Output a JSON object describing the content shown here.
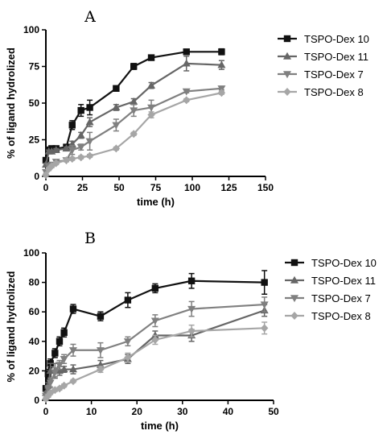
{
  "chart_data": [
    {
      "type": "line",
      "panel": "A",
      "xlabel": "time (h)",
      "ylabel": "% of ligand hydrolized",
      "xlim": [
        0,
        150
      ],
      "ylim": [
        0,
        100
      ],
      "xticks": [
        0,
        25,
        50,
        75,
        100,
        125,
        150
      ],
      "yticks": [
        0,
        25,
        50,
        75,
        100
      ],
      "grid": false,
      "legend": "right",
      "series": [
        {
          "name": "TSPO-Dex 10",
          "color": "#111111",
          "marker": "square",
          "x": [
            0,
            2,
            4,
            7,
            14,
            18,
            24,
            30,
            48,
            60,
            72,
            96,
            120
          ],
          "y": [
            11,
            18,
            19,
            19,
            20,
            35,
            45,
            47,
            60,
            75,
            81,
            85,
            85
          ],
          "err": [
            1,
            2,
            1,
            1,
            1,
            3,
            4,
            5,
            1,
            2,
            1,
            1,
            2
          ]
        },
        {
          "name": "TSPO-Dex 11",
          "color": "#666666",
          "marker": "triangle-up",
          "x": [
            0,
            2,
            4,
            7,
            14,
            18,
            24,
            30,
            48,
            60,
            72,
            96,
            120
          ],
          "y": [
            8,
            17,
            17,
            18,
            19,
            22,
            28,
            37,
            47,
            51,
            62,
            77,
            76
          ],
          "err": [
            1,
            1,
            1,
            1,
            1,
            2,
            2,
            3,
            2,
            2,
            2,
            5,
            3
          ]
        },
        {
          "name": "TSPO-Dex 7",
          "color": "#808080",
          "marker": "triangle-down",
          "x": [
            0,
            2,
            4,
            7,
            14,
            18,
            24,
            30,
            48,
            60,
            72,
            96,
            120
          ],
          "y": [
            3,
            7,
            8,
            10,
            11,
            18,
            20,
            24,
            35,
            45,
            47,
            58,
            60
          ],
          "err": [
            1,
            1,
            1,
            1,
            1,
            3,
            2,
            6,
            4,
            4,
            5,
            1,
            1
          ]
        },
        {
          "name": "TSPO-Dex 8",
          "color": "#a6a6a6",
          "marker": "diamond",
          "x": [
            0,
            2,
            4,
            7,
            14,
            18,
            24,
            30,
            48,
            60,
            72,
            96,
            120
          ],
          "y": [
            1,
            5,
            7,
            9,
            11,
            12,
            13,
            14,
            19,
            29,
            42,
            52,
            57
          ],
          "err": [
            1,
            1,
            1,
            1,
            1,
            1,
            1,
            1,
            1,
            1,
            2,
            1,
            1
          ]
        }
      ]
    },
    {
      "type": "line",
      "panel": "B",
      "xlabel": "time (h)",
      "ylabel": "% of ligand hydrolized",
      "xlim": [
        0,
        50
      ],
      "ylim": [
        0,
        100
      ],
      "xticks": [
        0,
        10,
        20,
        30,
        40,
        50
      ],
      "yticks": [
        0,
        20,
        40,
        60,
        80,
        100
      ],
      "grid": false,
      "legend": "right",
      "series": [
        {
          "name": "TSPO-Dex 10",
          "color": "#111111",
          "marker": "square",
          "x": [
            0,
            0.5,
            1,
            2,
            3,
            4,
            6,
            12,
            18,
            24,
            32,
            48
          ],
          "y": [
            8,
            18,
            25,
            32,
            40,
            46,
            62,
            57,
            68,
            76,
            81,
            80
          ],
          "err": [
            2,
            3,
            3,
            3,
            3,
            3,
            3,
            3,
            5,
            3,
            5,
            8
          ]
        },
        {
          "name": "TSPO-Dex 11",
          "color": "#666666",
          "marker": "triangle-up",
          "x": [
            0,
            0.5,
            1,
            2,
            3,
            4,
            6,
            12,
            18,
            24,
            32,
            48
          ],
          "y": [
            5,
            10,
            20,
            20,
            20,
            21,
            21,
            24,
            28,
            44,
            44,
            61
          ],
          "err": [
            1,
            2,
            5,
            5,
            3,
            2,
            3,
            3,
            3,
            3,
            4,
            4
          ]
        },
        {
          "name": "TSPO-Dex 7",
          "color": "#808080",
          "marker": "triangle-down",
          "x": [
            0,
            0.5,
            1,
            2,
            3,
            4,
            6,
            12,
            18,
            24,
            32,
            48
          ],
          "y": [
            3,
            8,
            12,
            19,
            24,
            28,
            34,
            34,
            40,
            54,
            62,
            65
          ],
          "err": [
            1,
            2,
            3,
            3,
            3,
            3,
            4,
            5,
            3,
            4,
            5,
            5
          ]
        },
        {
          "name": "TSPO-Dex 8",
          "color": "#a6a6a6",
          "marker": "diamond",
          "x": [
            0,
            0.5,
            1,
            2,
            3,
            4,
            6,
            12,
            18,
            24,
            32,
            48
          ],
          "y": [
            1,
            3,
            5,
            7,
            8,
            10,
            13,
            21,
            29,
            41,
            47,
            49
          ],
          "err": [
            1,
            1,
            1,
            1,
            1,
            1,
            1,
            2,
            3,
            3,
            4,
            4
          ]
        }
      ]
    }
  ]
}
